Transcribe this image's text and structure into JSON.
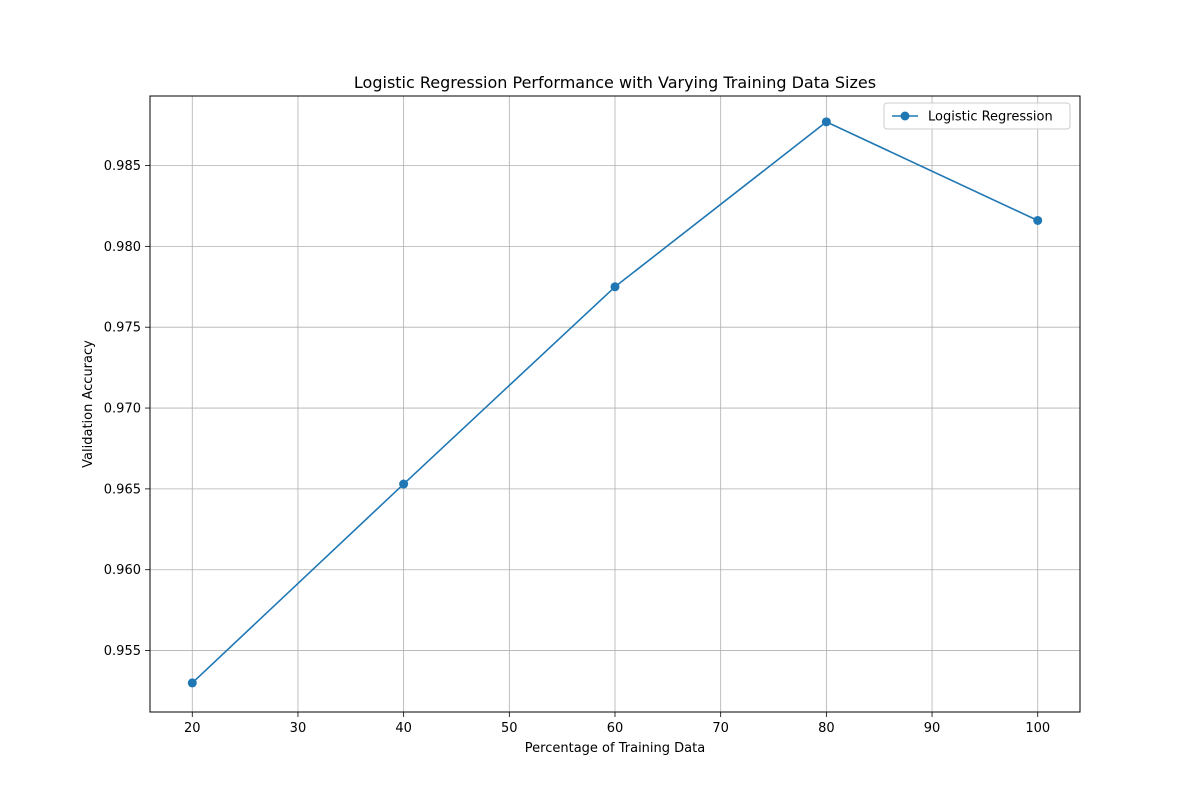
{
  "chart_data": {
    "type": "line",
    "title": "Logistic Regression Performance with Varying Training Data Sizes",
    "xlabel": "Percentage of Training Data",
    "ylabel": "Validation Accuracy",
    "xlim": [
      16,
      104
    ],
    "ylim": [
      0.9512,
      0.9893
    ],
    "xticks": [
      20,
      30,
      40,
      50,
      60,
      70,
      80,
      90,
      100
    ],
    "yticks": [
      0.955,
      0.96,
      0.965,
      0.97,
      0.975,
      0.98,
      0.985
    ],
    "grid": true,
    "legend_position": "top-right",
    "series": [
      {
        "name": "Logistic Regression",
        "color": "#1f77b4",
        "marker": "circle",
        "x": [
          20,
          40,
          60,
          80,
          100
        ],
        "y": [
          0.953,
          0.9653,
          0.9775,
          0.9877,
          0.9816
        ]
      }
    ]
  }
}
